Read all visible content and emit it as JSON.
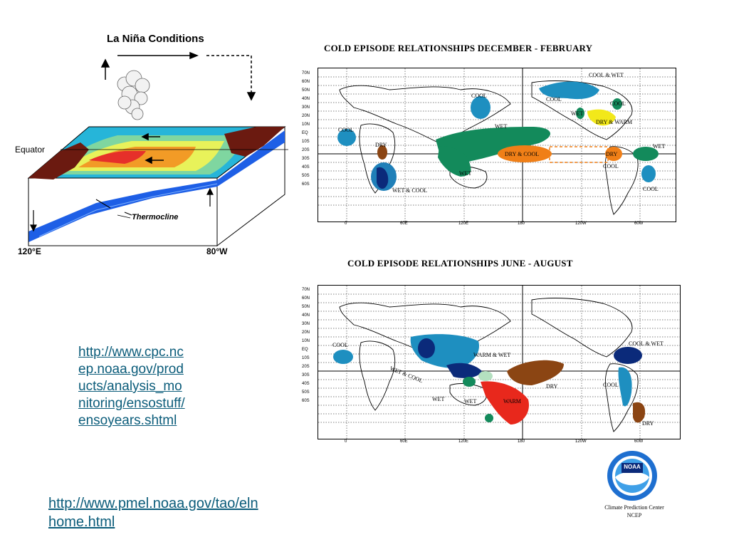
{
  "lanina": {
    "title": "La Niña Conditions",
    "equator_label": "Equator",
    "thermocline_label": "Thermocline",
    "left_lon": "120°E",
    "right_lon": "80°W"
  },
  "map_top": {
    "title": "COLD EPISODE RELATIONSHIPS   DECEMBER - FEBRUARY",
    "regions": [
      "COOL",
      "COOL",
      "COOL & WET",
      "COOL",
      "WET",
      "WET",
      "DRY & WARM",
      "COOL",
      "DRY",
      "DRY & COOL",
      "DRY",
      "WET",
      "COOL",
      "WET",
      "WET & COOL",
      "COOL"
    ]
  },
  "map_bottom": {
    "title": "COLD EPISODE RELATIONSHIPS     JUNE - AUGUST",
    "regions": [
      "COOL",
      "WET & COOL",
      "WARM & WET",
      "DRY",
      "WET",
      "WET",
      "WARM",
      "COOL & WET",
      "COOL",
      "DRY"
    ]
  },
  "lat_ticks": [
    "70N",
    "60N",
    "50N",
    "40N",
    "30N",
    "20N",
    "10N",
    "EQ",
    "10S",
    "20S",
    "30S",
    "40S",
    "50S",
    "60S"
  ],
  "lon_ticks": [
    "0",
    "60E",
    "120E",
    "180",
    "120W",
    "60W"
  ],
  "links": {
    "cpc": "http://www.cpc.ncep.noaa.gov/products/analysis_monitoring/ensostuff/ensoyears.shtml",
    "cpc_lines": [
      "http://www.cpc.nc",
      "ep.noaa.gov/prod",
      "ucts/analysis_mo",
      "nitoring/ensostuff/",
      "ensoyears.shtml"
    ],
    "pmel_lines": [
      "http://www.pmel.noaa.gov/tao/eln",
      "home.html"
    ]
  },
  "logo": {
    "badge": "NOAA",
    "caption_line1": "Climate Prediction Center",
    "caption_line2": "NCEP"
  },
  "colors": {
    "link": "#0b5c7a",
    "wet_green": "#138a5b",
    "cool_blue": "#1e8fc0",
    "dry_brown": "#8b4513",
    "warm_red": "#e8281c",
    "dry_orange": "#f07f17",
    "yellow": "#f2e81a",
    "navy": "#0b2a7a"
  }
}
